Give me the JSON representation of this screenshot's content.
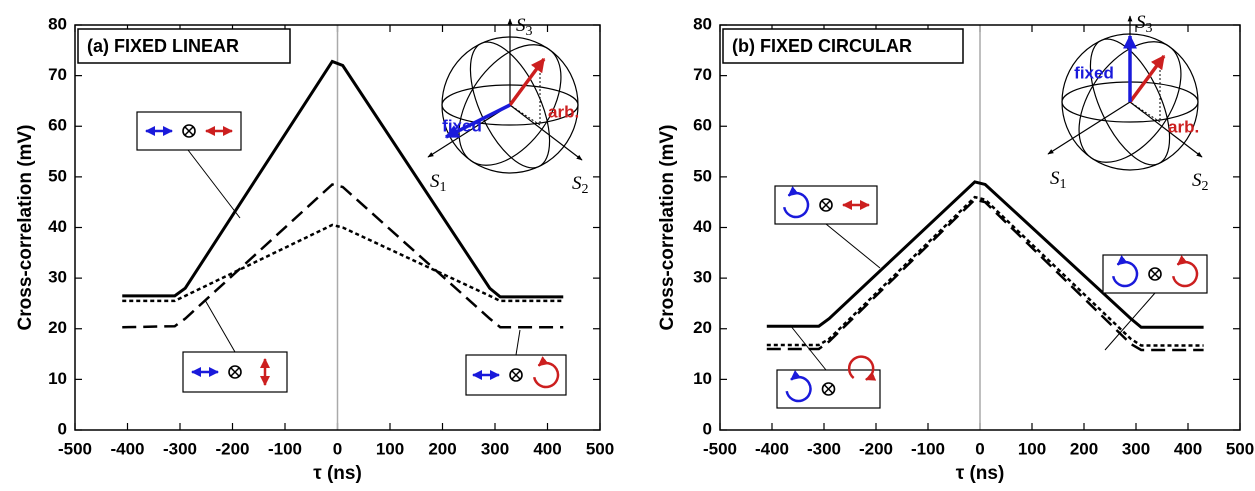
{
  "chart_data": [
    {
      "type": "line",
      "title": "(a) FIXED LINEAR",
      "xlabel": "τ (ns)",
      "ylabel": "Cross-correlation (mV)",
      "x": [
        -410,
        -310,
        -290,
        -10,
        10,
        290,
        310,
        430
      ],
      "series": [
        {
          "color": "#000000",
          "linestyle": "solid",
          "values": [
            26.5,
            26.5,
            28,
            72.8,
            72,
            28,
            26.3,
            26.3
          ]
        },
        {
          "color": "#000000",
          "linestyle": "dashed",
          "values": [
            20.3,
            20.5,
            22,
            48.5,
            48,
            22,
            20.3,
            20.3
          ]
        },
        {
          "color": "#000000",
          "linestyle": "dotted",
          "values": [
            25.5,
            25.5,
            26.5,
            40.5,
            40,
            26.5,
            25.5,
            25.5
          ]
        }
      ],
      "xlim": [
        -500,
        500
      ],
      "ylim": [
        0,
        80
      ],
      "xticks": [
        -500,
        -400,
        -300,
        -200,
        -100,
        0,
        100,
        200,
        300,
        400,
        500
      ],
      "yticks": [
        0,
        10,
        20,
        30,
        40,
        50,
        60,
        70,
        80
      ],
      "sphere_axes": [
        {
          "symbol": "S",
          "index": "1"
        },
        {
          "symbol": "S",
          "index": "2"
        },
        {
          "symbol": "S",
          "index": "3"
        }
      ],
      "annotations": [
        "fixed",
        "arb."
      ]
    },
    {
      "type": "line",
      "title": "(b) FIXED CIRCULAR",
      "xlabel": "τ (ns)",
      "ylabel": "Cross-correlation (mV)",
      "x": [
        -410,
        -310,
        -290,
        -10,
        10,
        290,
        310,
        430
      ],
      "series": [
        {
          "color": "#000000",
          "linestyle": "solid",
          "values": [
            20.5,
            20.5,
            22,
            49,
            48.5,
            22,
            20.3,
            20.3
          ]
        },
        {
          "color": "#000000",
          "linestyle": "dashed",
          "values": [
            16,
            16,
            17.5,
            45.5,
            45,
            17,
            15.8,
            15.8
          ]
        },
        {
          "color": "#000000",
          "linestyle": "dotted",
          "values": [
            16.8,
            16.8,
            18,
            46,
            45.5,
            18,
            16.7,
            16.7
          ]
        }
      ],
      "xlim": [
        -500,
        500
      ],
      "ylim": [
        0,
        80
      ],
      "xticks": [
        -500,
        -400,
        -300,
        -200,
        -100,
        0,
        100,
        200,
        300,
        400,
        500
      ],
      "yticks": [
        0,
        10,
        20,
        30,
        40,
        50,
        60,
        70,
        80
      ],
      "sphere_axes": [
        {
          "symbol": "S",
          "index": "1"
        },
        {
          "symbol": "S",
          "index": "2"
        },
        {
          "symbol": "S",
          "index": "3"
        }
      ],
      "annotations": [
        "fixed",
        "arb."
      ]
    }
  ]
}
